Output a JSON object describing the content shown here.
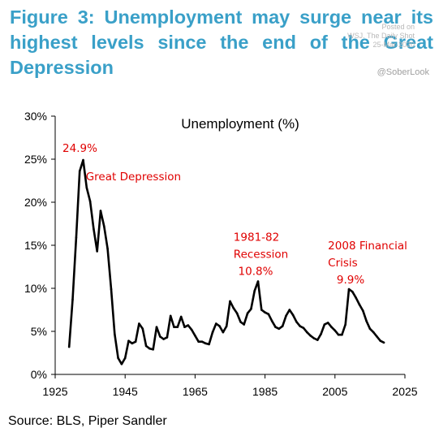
{
  "header": {
    "headline": "Figure 3: Unemployment may surge near its highest levels since the end of the Great Depression",
    "watermark_lines": [
      "Posted on",
      "WSJ. The Daily Shot",
      "25-Mar-2020"
    ],
    "handle": "@SoberLook"
  },
  "footer": {
    "source": "Source: BLS, Piper Sandler"
  },
  "colors": {
    "headline": "#3aa0c8",
    "series": "#000000",
    "annotation": "#e00000"
  },
  "chart_data": {
    "type": "line",
    "title": "Unemployment (%)",
    "xlim": [
      1925,
      2025
    ],
    "ylim": [
      0,
      30
    ],
    "x_ticks": [
      1925,
      1945,
      1965,
      1985,
      2005,
      2025
    ],
    "x_tick_labels": [
      "1925",
      "1945",
      "1965",
      "1985",
      "2005",
      "2025"
    ],
    "y_ticks": [
      0,
      5,
      10,
      15,
      20,
      25,
      30
    ],
    "y_tick_labels": [
      "0%",
      "5%",
      "10%",
      "15%",
      "20%",
      "25%",
      "30%"
    ],
    "grid": false,
    "series": [
      {
        "x": [
          1929,
          1930,
          1931,
          1932,
          1933,
          1934,
          1935,
          1936,
          1937,
          1938,
          1939,
          1940,
          1941,
          1942,
          1943,
          1944,
          1945,
          1946,
          1947,
          1948,
          1949,
          1950,
          1951,
          1952,
          1953,
          1954,
          1955,
          1956,
          1957,
          1958,
          1959,
          1960,
          1961,
          1962,
          1963,
          1964,
          1965,
          1966,
          1967,
          1968,
          1969,
          1970,
          1971,
          1972,
          1973,
          1974,
          1975,
          1976,
          1977,
          1978,
          1979,
          1980,
          1981,
          1982,
          1983,
          1984,
          1985,
          1986,
          1987,
          1988,
          1989,
          1990,
          1991,
          1992,
          1993,
          1994,
          1995,
          1996,
          1997,
          1998,
          1999,
          2000,
          2001,
          2002,
          2003,
          2004,
          2005,
          2006,
          2007,
          2008,
          2009,
          2010,
          2011,
          2012,
          2013,
          2014,
          2015,
          2016,
          2017,
          2018,
          2019
        ],
        "y": [
          3.2,
          8.7,
          15.9,
          23.6,
          24.9,
          21.7,
          20.1,
          16.9,
          14.3,
          19.0,
          17.2,
          14.6,
          9.9,
          4.7,
          1.9,
          1.2,
          1.9,
          3.9,
          3.6,
          3.8,
          5.9,
          5.3,
          3.3,
          3.0,
          2.9,
          5.5,
          4.4,
          4.1,
          4.3,
          6.8,
          5.5,
          5.5,
          6.7,
          5.5,
          5.7,
          5.2,
          4.5,
          3.8,
          3.8,
          3.6,
          3.5,
          4.9,
          5.9,
          5.6,
          4.9,
          5.6,
          8.5,
          7.7,
          7.1,
          6.1,
          5.8,
          7.1,
          7.6,
          9.7,
          10.8,
          7.5,
          7.2,
          7.0,
          6.2,
          5.5,
          5.3,
          5.6,
          6.8,
          7.5,
          6.9,
          6.1,
          5.6,
          5.4,
          4.9,
          4.5,
          4.2,
          4.0,
          4.7,
          5.8,
          6.0,
          5.5,
          5.1,
          4.6,
          4.6,
          5.8,
          9.9,
          9.6,
          8.9,
          8.1,
          7.4,
          6.2,
          5.3,
          4.9,
          4.4,
          3.9,
          3.7
        ]
      }
    ],
    "annotations": [
      {
        "text": "24.9%",
        "x": 1933,
        "y": 24.9
      },
      {
        "text": "Great Depression",
        "x": 1937,
        "y": 23
      },
      {
        "text": "1981-82",
        "x": 1976,
        "y": 16
      },
      {
        "text": "Recession",
        "x": 1976,
        "y": 14
      },
      {
        "text": "10.8%",
        "x": 1983,
        "y": 10.8
      },
      {
        "text": "2008 Financial",
        "x": 2003,
        "y": 15
      },
      {
        "text": "Crisis",
        "x": 2003,
        "y": 13
      },
      {
        "text": "9.9%",
        "x": 2009,
        "y": 9.9
      }
    ]
  }
}
